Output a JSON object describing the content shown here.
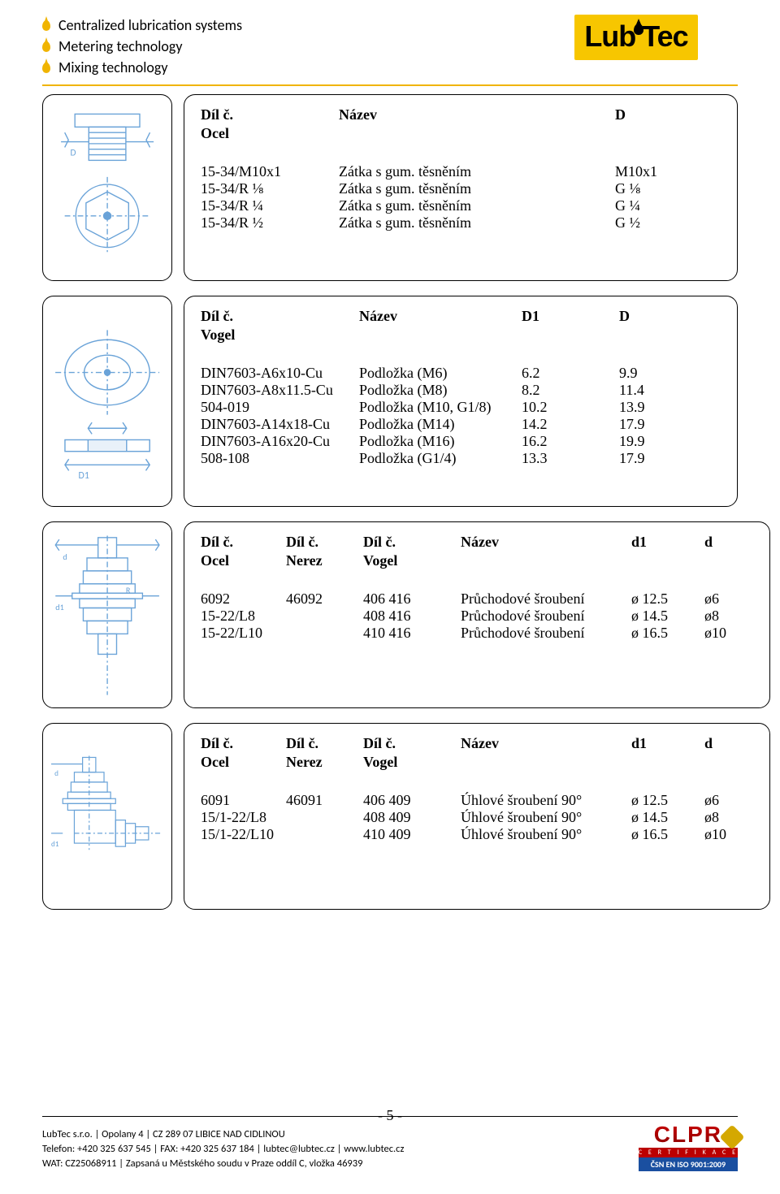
{
  "header": {
    "bullets": [
      "Centralized lubrication systems",
      "Metering technology",
      "Mixing technology"
    ],
    "logo_left": "Lub",
    "logo_right": "Tec",
    "rule_color": "#f0b400"
  },
  "section1": {
    "h1": "Díl č.",
    "h2": "Název",
    "h3": "D",
    "sub": "Ocel",
    "rows": [
      {
        "c1": "15-34/M10x1",
        "c2": "Zátka s gum. těsněním",
        "c3": "M10x1"
      },
      {
        "c1": "15-34/R ⅛",
        "c2": "Zátka s gum. těsněním",
        "c3": "G ⅛"
      },
      {
        "c1": "15-34/R ¼",
        "c2": "Zátka s gum. těsněním",
        "c3": "G ¼"
      },
      {
        "c1": "15-34/R ½",
        "c2": "Zátka s gum. těsněním",
        "c3": "G ½"
      }
    ]
  },
  "section2": {
    "h1": "Díl č.",
    "h2": "Název",
    "h3": "D1",
    "h4": "D",
    "sub": "Vogel",
    "rows": [
      {
        "c1": "DIN7603-A6x10-Cu",
        "c2": "Podložka (M6)",
        "c3": "6.2",
        "c4": "9.9"
      },
      {
        "c1": "DIN7603-A8x11.5-Cu",
        "c2": "Podložka (M8)",
        "c3": "8.2",
        "c4": "11.4"
      },
      {
        "c1": "504-019",
        "c2": "Podložka (M10, G1/8)",
        "c3": "10.2",
        "c4": "13.9"
      },
      {
        "c1": "DIN7603-A14x18-Cu",
        "c2": "Podložka (M14)",
        "c3": "14.2",
        "c4": "17.9"
      },
      {
        "c1": "DIN7603-A16x20-Cu",
        "c2": "Podložka (M16)",
        "c3": "16.2",
        "c4": "19.9"
      },
      {
        "c1": "508-108",
        "c2": "Podložka (G1/4)",
        "c3": "13.3",
        "c4": "17.9"
      }
    ]
  },
  "section3": {
    "h1": "Díl č.",
    "h2": "Díl č.",
    "h3": "Díl č.",
    "h4": "Název",
    "h5": "d1",
    "h6": "d",
    "sub1": "Ocel",
    "sub2": "Nerez",
    "sub3": "Vogel",
    "rows": [
      {
        "c1": "6092",
        "c2": "46092",
        "c3": "406 416",
        "c4": "Průchodové šroubení",
        "c5": "ø 12.5",
        "c6": "ø6"
      },
      {
        "c1": "15-22/L8",
        "c2": "",
        "c3": "408 416",
        "c4": "Průchodové šroubení",
        "c5": "ø 14.5",
        "c6": "ø8"
      },
      {
        "c1": "15-22/L10",
        "c2": "",
        "c3": "410 416",
        "c4": "Průchodové šroubení",
        "c5": "ø 16.5",
        "c6": "ø10"
      }
    ]
  },
  "section4": {
    "h1": "Díl č.",
    "h2": "Díl č.",
    "h3": "Díl č.",
    "h4": "Název",
    "h5": "d1",
    "h6": "d",
    "sub1": "Ocel",
    "sub2": "Nerez",
    "sub3": "Vogel",
    "rows": [
      {
        "c1": "6091",
        "c2": "46091",
        "c3": "406 409",
        "c4": "Úhlové šroubení 90°",
        "c5": "ø 12.5",
        "c6": "ø6"
      },
      {
        "c1": "15/1-22/L8",
        "c2": "",
        "c3": "408 409",
        "c4": "Úhlové šroubení 90°",
        "c5": "ø 14.5",
        "c6": "ø8"
      },
      {
        "c1": "15/1-22/L10",
        "c2": "",
        "c3": "410 409",
        "c4": "Úhlové šroubení 90°",
        "c5": "ø 16.5",
        "c6": "ø10"
      }
    ]
  },
  "page_number": "- 5 -",
  "footer": {
    "l1": "LubTec s.r.o. | Opolany 4 | CZ 289 07 LIBICE NAD CIDLINOU",
    "l2": "Telefon: +420 325 637 545 | FAX: +420 325 637 184 | lubtec@lubtec.cz | www.lubtec.cz",
    "l3": "WAT: CZ25068911 | Zapsaná u Městského soudu v Praze oddíl C, vložka 46939",
    "cert_top": "CLPR",
    "cert_mid": "C E R T I F I K A C E",
    "cert_bot": "ČSN EN ISO 9001:2009"
  }
}
